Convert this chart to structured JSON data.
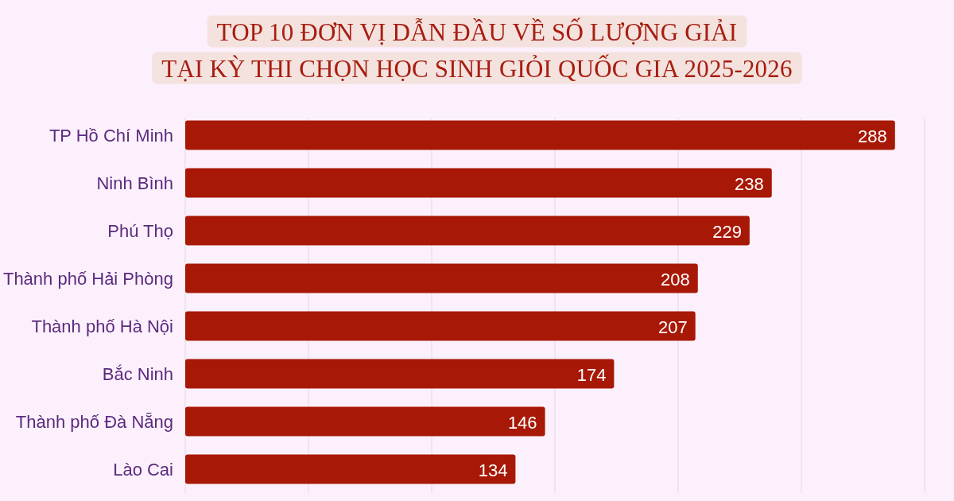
{
  "chart_data": {
    "type": "bar",
    "orientation": "horizontal",
    "title": "TOP 10 ĐƠN VỊ DẪN ĐẦU VỀ SỐ LƯỢNG GIẢI\nTẠI KỲ THI CHỌN HỌC SINH GIỎI QUỐC GIA 2025-2026",
    "categories": [
      "TP Hồ Chí Minh",
      "Ninh Bình",
      "Phú Thọ",
      "Thành phố Hải Phòng",
      "Thành phố Hà Nội",
      "Bắc Ninh",
      "Thành phố Đà Nẵng",
      "Lào Cai"
    ],
    "values": [
      288,
      238,
      229,
      208,
      207,
      174,
      146,
      134
    ],
    "color": "#a81806",
    "xlim": [
      0,
      300
    ],
    "xticks": [
      {
        "value": 0,
        "label": null
      },
      {
        "value": 50,
        "label": null
      },
      {
        "value": 100,
        "label": null
      },
      {
        "value": 150,
        "label": null
      },
      {
        "value": 200,
        "label": null
      },
      {
        "value": 250,
        "label": null
      },
      {
        "value": 300,
        "label": null
      }
    ],
    "tick_labels": "y",
    "grid": "x",
    "data_labels": true
  }
}
